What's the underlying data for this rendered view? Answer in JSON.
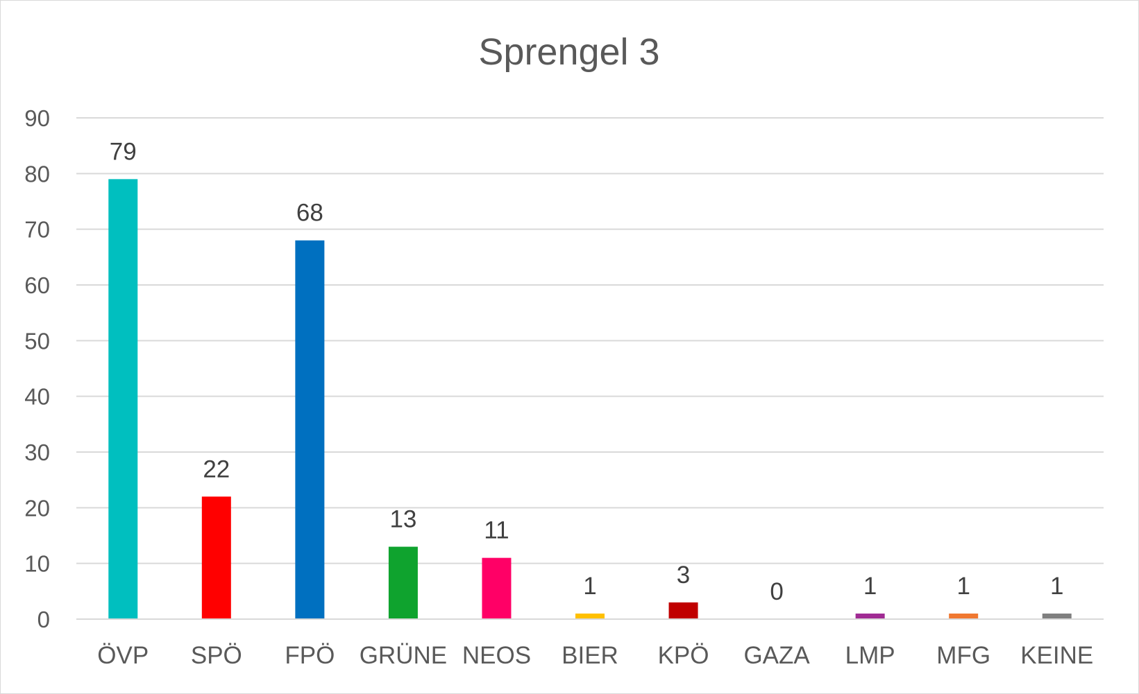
{
  "chart_data": {
    "type": "bar",
    "title": "Sprengel 3",
    "xlabel": "",
    "ylabel": "",
    "ylim": [
      0,
      90
    ],
    "yticks": [
      0,
      10,
      20,
      30,
      40,
      50,
      60,
      70,
      80,
      90
    ],
    "grid": true,
    "legend": "none",
    "categories": [
      "ÖVP",
      "SPÖ",
      "FPÖ",
      "GRÜNE",
      "NEOS",
      "BIER",
      "KPÖ",
      "GAZA",
      "LMP",
      "MFG",
      "KEINE"
    ],
    "values": [
      79,
      22,
      68,
      13,
      11,
      1,
      3,
      0,
      1,
      1,
      1
    ],
    "colors": [
      "#00BFBF",
      "#FF0000",
      "#0070C0",
      "#0FA32E",
      "#FF0066",
      "#FFC000",
      "#C00000",
      "#7F7F7F",
      "#A02B93",
      "#F07830",
      "#7F7F7F"
    ]
  }
}
